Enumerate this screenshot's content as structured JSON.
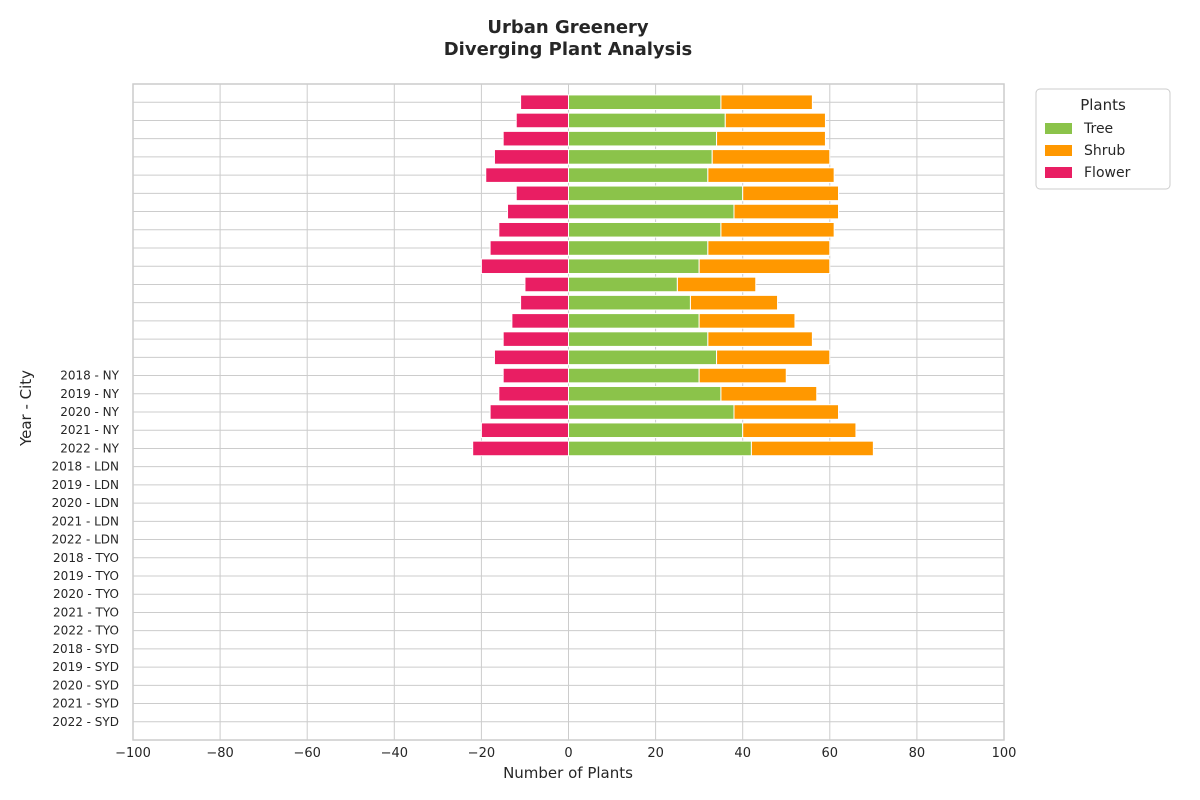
{
  "chart_data": {
    "type": "bar",
    "orientation": "horizontal",
    "stacked": true,
    "title": [
      "Urban Greenery",
      "Diverging Plant Analysis"
    ],
    "xlabel": "Number of Plants",
    "ylabel": "Year - City",
    "xlim": [
      -100,
      100
    ],
    "xticks": [
      -100,
      -80,
      -60,
      -40,
      -20,
      0,
      20,
      40,
      60,
      80,
      100
    ],
    "xtick_labels": [
      "−100",
      "−80",
      "−60",
      "−40",
      "−20",
      "0",
      "20",
      "40",
      "60",
      "80",
      "100"
    ],
    "grid": true,
    "legend": {
      "title": "Plants",
      "placement": "outside top-right",
      "entries": [
        "Tree",
        "Shrub",
        "Flower"
      ]
    },
    "categories": [
      "",
      "",
      "",
      "",
      "",
      "",
      "",
      "",
      "",
      "",
      "",
      "",
      "",
      "",
      "",
      "2018 - NY",
      "2019 - NY",
      "2020 - NY",
      "2021 - NY",
      "2022 - NY",
      "2018 - LDN",
      "2019 - LDN",
      "2020 - LDN",
      "2021 - LDN",
      "2022 - LDN",
      "2018 - TYO",
      "2019 - TYO",
      "2020 - TYO",
      "2021 - TYO",
      "2022 - TYO",
      "2018 - SYD",
      "2019 - SYD",
      "2020 - SYD",
      "2021 - SYD",
      "2022 - SYD"
    ],
    "series": [
      {
        "name": "Tree",
        "color": "#8bc34a",
        "values": [
          35,
          36,
          34,
          33,
          32,
          40,
          38,
          35,
          32,
          30,
          25,
          28,
          30,
          32,
          34,
          30,
          35,
          38,
          40,
          42,
          null,
          null,
          null,
          null,
          null,
          null,
          null,
          null,
          null,
          null,
          null,
          null,
          null,
          null,
          null
        ]
      },
      {
        "name": "Shrub",
        "color": "#ff9800",
        "values": [
          21,
          23,
          25,
          27,
          29,
          22,
          24,
          26,
          28,
          30,
          18,
          20,
          22,
          24,
          26,
          20,
          22,
          24,
          26,
          28,
          null,
          null,
          null,
          null,
          null,
          null,
          null,
          null,
          null,
          null,
          null,
          null,
          null,
          null,
          null
        ]
      },
      {
        "name": "Flower",
        "color": "#e91e63",
        "values": [
          -11,
          -12,
          -15,
          -17,
          -19,
          -12,
          -14,
          -16,
          -18,
          -20,
          -10,
          -11,
          -13,
          -15,
          -17,
          -15,
          -16,
          -18,
          -20,
          -22,
          null,
          null,
          null,
          null,
          null,
          null,
          null,
          null,
          null,
          null,
          null,
          null,
          null,
          null,
          null
        ]
      }
    ]
  }
}
